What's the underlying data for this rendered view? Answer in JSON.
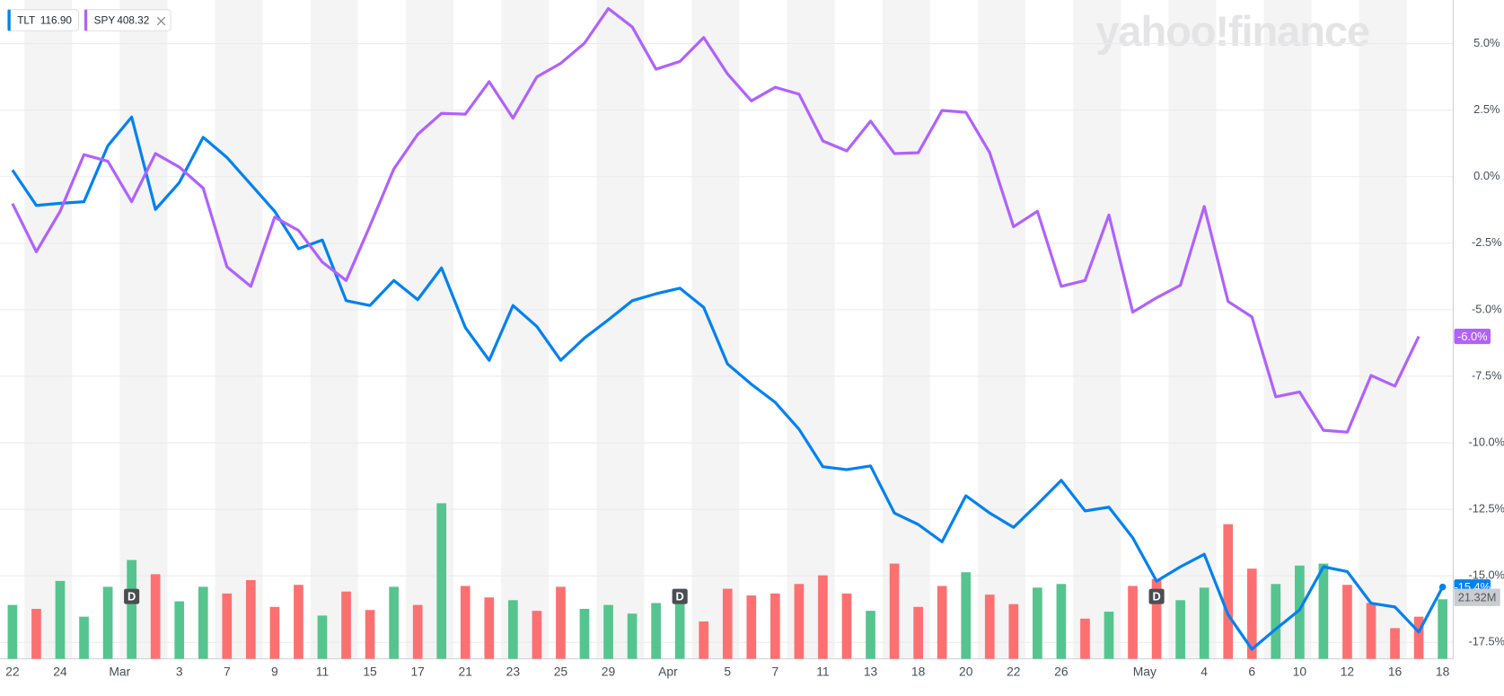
{
  "chart_data": {
    "type": "line",
    "watermark": "yahoo!finance",
    "categories": [
      "22",
      null,
      "24",
      null,
      null,
      "Mar",
      null,
      "3",
      null,
      "7",
      null,
      "9",
      null,
      "11",
      null,
      "15",
      null,
      "17",
      null,
      "21",
      null,
      "23",
      null,
      "25",
      null,
      "29",
      null,
      null,
      "Apr",
      null,
      "5",
      null,
      "7",
      null,
      "11",
      null,
      "13",
      null,
      "18",
      null,
      "20",
      null,
      "22",
      null,
      "26",
      null,
      null,
      null,
      "May",
      null,
      "4",
      null,
      "6",
      null,
      "10",
      null,
      "12",
      null,
      "16",
      null,
      "18"
    ],
    "series": [
      {
        "name": "TLT",
        "price": "116.90",
        "color": "#0081f2",
        "values": [
          0.25,
          -1.08,
          -1.0,
          -0.94,
          1.16,
          2.24,
          -1.23,
          -0.22,
          1.48,
          0.72,
          -0.29,
          -1.3,
          -2.71,
          -2.38,
          -4.66,
          -4.84,
          -3.9,
          -4.62,
          -3.43,
          -5.67,
          -6.9,
          -4.84,
          -5.63,
          -6.9,
          -6.06,
          -5.38,
          -4.66,
          -4.4,
          -4.19,
          -4.91,
          -7.04,
          -7.8,
          -8.48,
          -9.49,
          -10.9,
          -11.01,
          -10.87,
          -12.64,
          -13.07,
          -13.72,
          -11.99,
          -12.64,
          -13.18,
          -12.31,
          -11.41,
          -12.56,
          -12.42,
          -13.57,
          -15.2,
          -14.66,
          -14.19,
          -16.46,
          -17.76,
          -17.0,
          -16.28,
          -14.66,
          -14.84,
          -16.03,
          -16.17,
          -17.11,
          -15.42
        ],
        "value_labels": [
          null,
          null,
          null,
          null,
          null,
          null,
          null,
          null,
          null,
          null,
          null,
          null,
          null,
          null,
          null,
          null,
          null,
          null,
          null,
          null,
          null,
          null,
          null,
          null,
          null,
          null,
          null,
          null,
          null,
          null,
          null,
          null,
          null,
          null,
          null,
          null,
          null,
          null,
          null,
          null,
          null,
          null,
          null,
          null,
          null,
          null,
          null,
          null,
          null,
          null,
          null,
          null,
          null,
          null,
          null,
          null,
          null,
          null,
          null,
          null,
          "-15.4%"
        ]
      },
      {
        "name": "SPY",
        "price": "408.32",
        "color": "#b061ff",
        "values": [
          -1.01,
          -2.82,
          -1.3,
          0.83,
          0.58,
          -0.94,
          0.87,
          0.36,
          -0.43,
          -3.39,
          -4.12,
          -1.52,
          -2.02,
          -3.21,
          -3.9,
          -1.84,
          0.29,
          1.59,
          2.38,
          2.35,
          3.57,
          2.2,
          3.75,
          4.26,
          5.02,
          6.32,
          5.63,
          4.04,
          4.33,
          5.23,
          3.86,
          2.85,
          3.36,
          3.1,
          1.34,
          0.97,
          2.09,
          0.87,
          0.9,
          2.49,
          2.42,
          0.9,
          -1.88,
          -1.3,
          -4.12,
          -3.9,
          -1.44,
          -5.09,
          -4.55,
          -4.08,
          -1.12,
          -4.69,
          -5.27,
          -8.27,
          -8.09,
          -9.53,
          -9.6,
          -7.47,
          -7.87,
          -6.0,
          null
        ],
        "value_labels": [
          null,
          null,
          null,
          null,
          null,
          null,
          null,
          null,
          null,
          null,
          null,
          null,
          null,
          null,
          null,
          null,
          null,
          null,
          null,
          null,
          null,
          null,
          null,
          null,
          null,
          null,
          null,
          null,
          null,
          null,
          null,
          null,
          null,
          null,
          null,
          null,
          null,
          null,
          null,
          null,
          null,
          null,
          null,
          null,
          null,
          null,
          null,
          null,
          null,
          null,
          null,
          null,
          null,
          null,
          null,
          null,
          null,
          null,
          null,
          "-6.0%",
          null
        ]
      }
    ],
    "volume": {
      "values": [
        19.3,
        17.9,
        27.9,
        15.1,
        25.8,
        35.4,
        30.3,
        20.6,
        25.8,
        23.4,
        28.2,
        18.6,
        26.5,
        15.5,
        24.1,
        17.5,
        25.8,
        19.3,
        55.7,
        26.1,
        22.0,
        21.0,
        17.2,
        25.8,
        17.9,
        19.3,
        16.2,
        20.0,
        22.7,
        13.4,
        25.1,
        22.7,
        23.4,
        26.8,
        29.9,
        23.4,
        17.2,
        34.1,
        18.6,
        26.1,
        31.0,
        23.0,
        19.6,
        25.5,
        26.8,
        14.4,
        16.9,
        26.1,
        28.6,
        21.0,
        25.5,
        48.2,
        32.3,
        26.8,
        33.4,
        34.1,
        26.5,
        20.0,
        11.0,
        15.1,
        21.32
      ],
      "value_labels": [
        null,
        null,
        null,
        null,
        null,
        null,
        null,
        null,
        null,
        null,
        null,
        null,
        null,
        null,
        null,
        null,
        null,
        null,
        null,
        null,
        null,
        null,
        null,
        null,
        null,
        null,
        null,
        null,
        null,
        null,
        null,
        null,
        null,
        null,
        null,
        null,
        null,
        null,
        null,
        null,
        null,
        null,
        null,
        null,
        null,
        null,
        null,
        null,
        null,
        null,
        null,
        null,
        null,
        null,
        null,
        null,
        null,
        null,
        null,
        null,
        "21.32M"
      ],
      "colors": [
        "#56c48e",
        "#fd7072",
        "#56c48e",
        "#56c48e",
        "#56c48e",
        "#56c48e",
        "#fd7072",
        "#56c48e",
        "#56c48e",
        "#fd7072",
        "#fd7072",
        "#fd7072",
        "#fd7072",
        "#56c48e",
        "#fd7072",
        "#fd7072",
        "#56c48e",
        "#fd7072",
        "#56c48e",
        "#fd7072",
        "#fd7072",
        "#56c48e",
        "#fd7072",
        "#fd7072",
        "#56c48e",
        "#56c48e",
        "#56c48e",
        "#56c48e",
        "#56c48e",
        "#fd7072",
        "#fd7072",
        "#fd7072",
        "#fd7072",
        "#fd7072",
        "#fd7072",
        "#fd7072",
        "#56c48e",
        "#fd7072",
        "#fd7072",
        "#fd7072",
        "#56c48e",
        "#fd7072",
        "#fd7072",
        "#56c48e",
        "#56c48e",
        "#fd7072",
        "#56c48e",
        "#fd7072",
        "#fd7072",
        "#56c48e",
        "#56c48e",
        "#fd7072",
        "#fd7072",
        "#56c48e",
        "#56c48e",
        "#56c48e",
        "#fd7072",
        "#fd7072",
        "#fd7072",
        "#fd7072",
        "#56c48e"
      ]
    },
    "events": [
      {
        "x": 5,
        "label": "D"
      },
      {
        "x": 28,
        "label": "D"
      },
      {
        "x": 48,
        "label": "D"
      }
    ],
    "ylim": [
      -18.12,
      6.64
    ],
    "yticks": [
      {
        "value": 5,
        "label": "5.0%"
      },
      {
        "value": 2.5,
        "label": "2.5%"
      },
      {
        "value": 0,
        "label": "0.0%"
      },
      {
        "value": -2.5,
        "label": "-2.5%"
      },
      {
        "value": -5,
        "label": "-5.0%"
      },
      {
        "value": -7.5,
        "label": "-7.5%"
      },
      {
        "value": -10,
        "label": "-10.0%"
      },
      {
        "value": -12.5,
        "label": "-12.5%"
      },
      {
        "value": -15,
        "label": "-15.0%"
      },
      {
        "value": -17.5,
        "label": "-17.5%"
      }
    ],
    "grid": true
  }
}
